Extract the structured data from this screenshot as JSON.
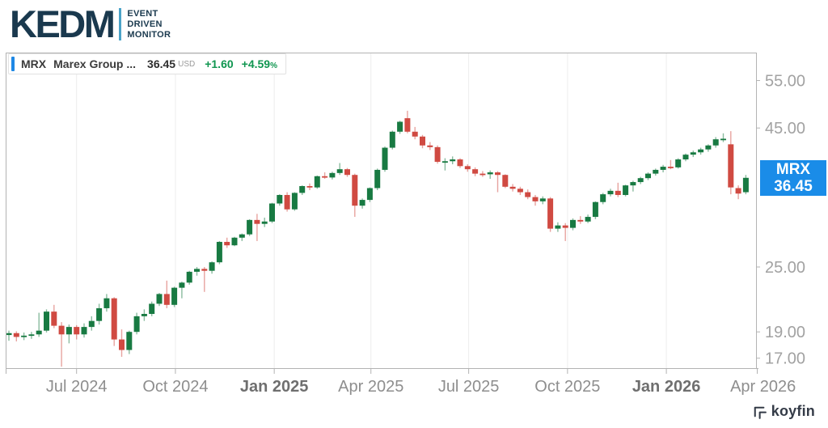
{
  "header": {
    "logo_text": "KEDM",
    "tagline": [
      "EVENT",
      "DRIVEN",
      "MONITOR"
    ]
  },
  "legend": {
    "ticker": "MRX",
    "name": "Marex Group ...",
    "price": "36.45",
    "currency": "USD",
    "change": "+1.60",
    "change_pct": "+4.59",
    "pct_symbol": "%"
  },
  "price_badge": {
    "ticker": "MRX",
    "price": "36.45",
    "color": "#1a8ce8"
  },
  "watermark": {
    "text": "koyfin"
  },
  "chart_data": {
    "type": "candlestick",
    "ticker": "MRX",
    "series_name": "Marex Group weekly OHLC (USD)",
    "scale": "log",
    "last_price": 36.45,
    "x_start": "2024-04-29",
    "x_step_days": 7,
    "y_axis_range": [
      16.3,
      61.9
    ],
    "y_ticks": [
      {
        "label": "55.00",
        "value": 55
      },
      {
        "label": "45.00",
        "value": 45
      },
      {
        "label": "25.00",
        "value": 25
      },
      {
        "label": "19.00",
        "value": 19
      },
      {
        "label": "17.00",
        "value": 17
      }
    ],
    "x_ticks": [
      {
        "label": "Jul 2024",
        "date": "2024-07-01",
        "bold": false
      },
      {
        "label": "Oct 2024",
        "date": "2024-10-01",
        "bold": false
      },
      {
        "label": "Jan 2025",
        "date": "2025-01-01",
        "bold": true
      },
      {
        "label": "Apr 2025",
        "date": "2025-04-01",
        "bold": false
      },
      {
        "label": "Jul 2025",
        "date": "2025-07-01",
        "bold": false
      },
      {
        "label": "Oct 2025",
        "date": "2025-10-01",
        "bold": false
      },
      {
        "label": "Jan 2026",
        "date": "2026-01-01",
        "bold": true
      },
      {
        "label": "Apr 2026",
        "date": "2026-04-01",
        "bold": false
      }
    ],
    "colors": {
      "up": "#187a42",
      "down": "#d04a42",
      "grid": "#ededed",
      "axis": "#b3b3b3",
      "tick_label": "#a2a2a2",
      "x_label": "#8e8e8e",
      "x_label_bold": "#6f6f6f"
    },
    "candles": [
      [
        18.75,
        19.1,
        18.3,
        18.9
      ],
      [
        18.9,
        19.05,
        18.25,
        18.6
      ],
      [
        18.6,
        18.95,
        18.35,
        18.7
      ],
      [
        18.7,
        19.0,
        18.45,
        18.8
      ],
      [
        18.8,
        20.6,
        18.6,
        19.1
      ],
      [
        19.1,
        20.9,
        18.95,
        20.7
      ],
      [
        20.7,
        21.3,
        19.3,
        19.5
      ],
      [
        19.5,
        19.8,
        16.4,
        18.8
      ],
      [
        18.8,
        19.6,
        18.1,
        19.4
      ],
      [
        19.4,
        19.55,
        18.4,
        18.8
      ],
      [
        18.8,
        19.7,
        18.55,
        19.4
      ],
      [
        19.4,
        20.3,
        19.1,
        19.9
      ],
      [
        19.9,
        21.4,
        19.6,
        21.0
      ],
      [
        21.0,
        22.3,
        20.7,
        21.9
      ],
      [
        21.9,
        22.0,
        17.9,
        18.4
      ],
      [
        18.4,
        19.2,
        17.1,
        17.6
      ],
      [
        17.6,
        19.1,
        17.3,
        19.0
      ],
      [
        19.0,
        20.6,
        18.8,
        20.3
      ],
      [
        20.3,
        20.9,
        19.9,
        20.5
      ],
      [
        20.5,
        21.6,
        20.3,
        21.4
      ],
      [
        21.4,
        22.4,
        21.2,
        22.3
      ],
      [
        22.3,
        23.6,
        21.0,
        21.3
      ],
      [
        21.3,
        23.0,
        21.1,
        22.9
      ],
      [
        22.9,
        23.5,
        21.9,
        23.4
      ],
      [
        23.4,
        24.6,
        23.2,
        24.5
      ],
      [
        24.5,
        25.0,
        24.1,
        24.8
      ],
      [
        24.8,
        25.0,
        22.5,
        24.6
      ],
      [
        24.6,
        25.6,
        24.3,
        25.5
      ],
      [
        25.5,
        27.9,
        25.3,
        27.8
      ],
      [
        27.8,
        28.3,
        27.1,
        27.4
      ],
      [
        27.4,
        28.4,
        27.3,
        28.3
      ],
      [
        28.3,
        28.8,
        27.9,
        28.7
      ],
      [
        28.7,
        30.6,
        28.5,
        30.5
      ],
      [
        30.5,
        31.3,
        27.9,
        30.0
      ],
      [
        30.0,
        30.8,
        29.6,
        30.3
      ],
      [
        30.3,
        32.8,
        30.1,
        32.7
      ],
      [
        32.7,
        34.0,
        32.4,
        33.9
      ],
      [
        33.9,
        34.3,
        31.6,
        31.9
      ],
      [
        31.9,
        34.3,
        31.7,
        34.2
      ],
      [
        34.2,
        35.3,
        33.9,
        35.2
      ],
      [
        35.2,
        35.6,
        34.6,
        35.0
      ],
      [
        35.0,
        36.8,
        34.8,
        36.7
      ],
      [
        36.7,
        37.3,
        36.3,
        36.5
      ],
      [
        36.5,
        37.4,
        36.2,
        37.2
      ],
      [
        37.2,
        38.8,
        36.9,
        37.8
      ],
      [
        37.8,
        38.0,
        36.6,
        36.9
      ],
      [
        36.9,
        37.1,
        30.9,
        32.4
      ],
      [
        32.4,
        33.4,
        32.0,
        33.2
      ],
      [
        33.2,
        35.0,
        32.9,
        34.9
      ],
      [
        34.9,
        37.9,
        34.6,
        37.7
      ],
      [
        37.7,
        41.6,
        37.4,
        41.4
      ],
      [
        41.4,
        44.5,
        41.1,
        44.3
      ],
      [
        44.3,
        46.4,
        43.9,
        46.2
      ],
      [
        46.9,
        48.4,
        44.0,
        44.3
      ],
      [
        44.3,
        45.2,
        42.9,
        43.4
      ],
      [
        43.4,
        43.7,
        41.3,
        41.8
      ],
      [
        41.8,
        42.4,
        41.0,
        41.5
      ],
      [
        41.5,
        41.8,
        38.7,
        39.0
      ],
      [
        39.0,
        39.6,
        37.6,
        39.1
      ],
      [
        39.1,
        39.9,
        38.6,
        39.4
      ],
      [
        39.4,
        39.6,
        38.0,
        38.3
      ],
      [
        38.3,
        38.6,
        37.4,
        37.8
      ],
      [
        37.8,
        38.1,
        36.7,
        37.1
      ],
      [
        37.1,
        37.5,
        36.6,
        37.0
      ],
      [
        37.0,
        37.6,
        36.3,
        37.3
      ],
      [
        37.3,
        37.5,
        34.3,
        36.9
      ],
      [
        36.9,
        37.0,
        34.9,
        35.1
      ],
      [
        35.1,
        35.5,
        34.4,
        34.8
      ],
      [
        34.8,
        35.1,
        33.9,
        34.3
      ],
      [
        34.3,
        34.7,
        33.3,
        33.6
      ],
      [
        33.6,
        33.9,
        32.4,
        33.0
      ],
      [
        33.0,
        33.7,
        32.6,
        33.4
      ],
      [
        33.4,
        33.6,
        29.0,
        29.4
      ],
      [
        29.4,
        30.2,
        29.0,
        29.8
      ],
      [
        29.8,
        30.1,
        27.9,
        29.5
      ],
      [
        29.5,
        30.7,
        29.2,
        30.5
      ],
      [
        30.5,
        31.0,
        30.0,
        30.3
      ],
      [
        30.3,
        31.2,
        30.1,
        30.9
      ],
      [
        30.9,
        33.0,
        30.6,
        32.9
      ],
      [
        32.9,
        34.2,
        32.6,
        34.0
      ],
      [
        34.0,
        34.8,
        33.7,
        34.5
      ],
      [
        34.5,
        35.7,
        33.6,
        33.9
      ],
      [
        33.9,
        35.4,
        33.7,
        35.3
      ],
      [
        35.3,
        36.0,
        34.4,
        35.8
      ],
      [
        35.8,
        36.6,
        35.5,
        36.4
      ],
      [
        36.4,
        37.3,
        36.1,
        37.1
      ],
      [
        37.1,
        37.9,
        36.8,
        37.7
      ],
      [
        37.7,
        38.5,
        37.3,
        38.2
      ],
      [
        38.2,
        39.3,
        37.8,
        38.1
      ],
      [
        38.1,
        39.6,
        37.9,
        39.4
      ],
      [
        39.4,
        40.4,
        39.1,
        40.2
      ],
      [
        40.2,
        40.9,
        39.8,
        40.6
      ],
      [
        40.6,
        41.4,
        40.2,
        41.1
      ],
      [
        41.1,
        42.0,
        40.7,
        41.8
      ],
      [
        41.8,
        43.3,
        41.4,
        42.9
      ],
      [
        42.9,
        44.0,
        42.4,
        43.0
      ],
      [
        42.0,
        44.4,
        34.0,
        35.0
      ],
      [
        34.9,
        35.3,
        33.3,
        34.1
      ],
      [
        34.3,
        36.9,
        34.0,
        36.45
      ]
    ]
  }
}
